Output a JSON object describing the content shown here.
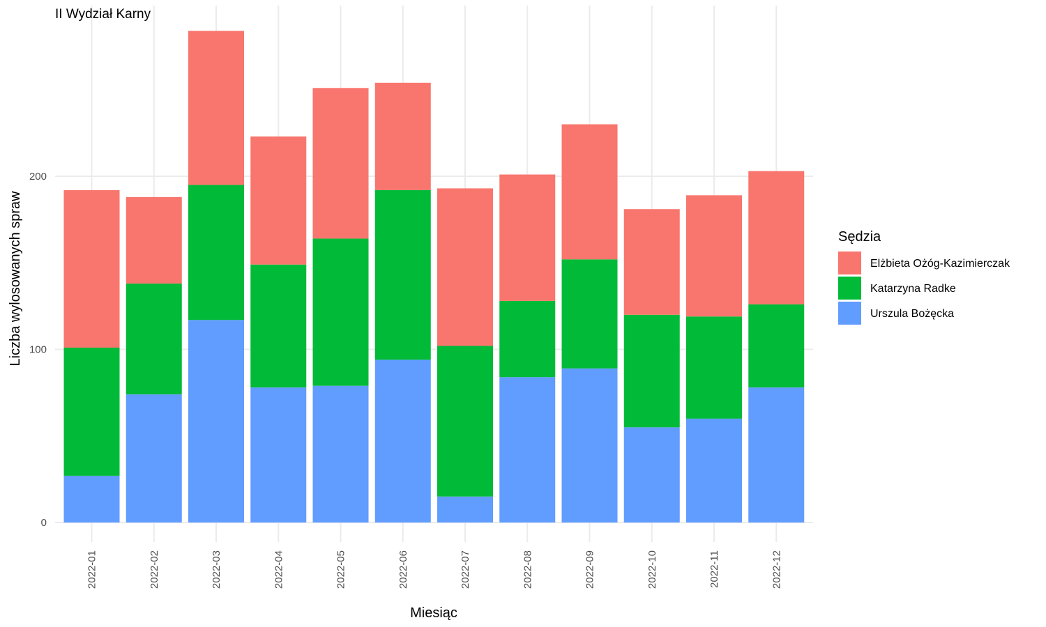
{
  "chart_data": {
    "type": "bar",
    "stacked": true,
    "title": "II Wydział Karny",
    "xlabel": "Miesiąc",
    "ylabel": "Liczba wylosowanych spraw",
    "ylim": [
      0,
      290
    ],
    "yticks": [
      0,
      100,
      200
    ],
    "grid": true,
    "legend": {
      "title": "Sędzia",
      "position": "right"
    },
    "categories": [
      "2022-01",
      "2022-02",
      "2022-03",
      "2022-04",
      "2022-05",
      "2022-06",
      "2022-07",
      "2022-08",
      "2022-09",
      "2022-10",
      "2022-11",
      "2022-12"
    ],
    "series": [
      {
        "name": "Urszula Bożęcka",
        "color": "#619CFF",
        "values": [
          27,
          74,
          117,
          78,
          79,
          94,
          15,
          84,
          89,
          55,
          60,
          78
        ]
      },
      {
        "name": "Katarzyna Radke",
        "color": "#00BA38",
        "values": [
          74,
          64,
          78,
          71,
          85,
          98,
          87,
          44,
          63,
          65,
          59,
          48
        ]
      },
      {
        "name": "Elżbieta Ożóg-Kazimierczak",
        "color": "#F8766D",
        "values": [
          91,
          50,
          89,
          74,
          87,
          62,
          91,
          73,
          78,
          61,
          70,
          77
        ]
      }
    ],
    "legend_order": [
      "Elżbieta Ożóg-Kazimierczak",
      "Katarzyna Radke",
      "Urszula Bożęcka"
    ]
  }
}
